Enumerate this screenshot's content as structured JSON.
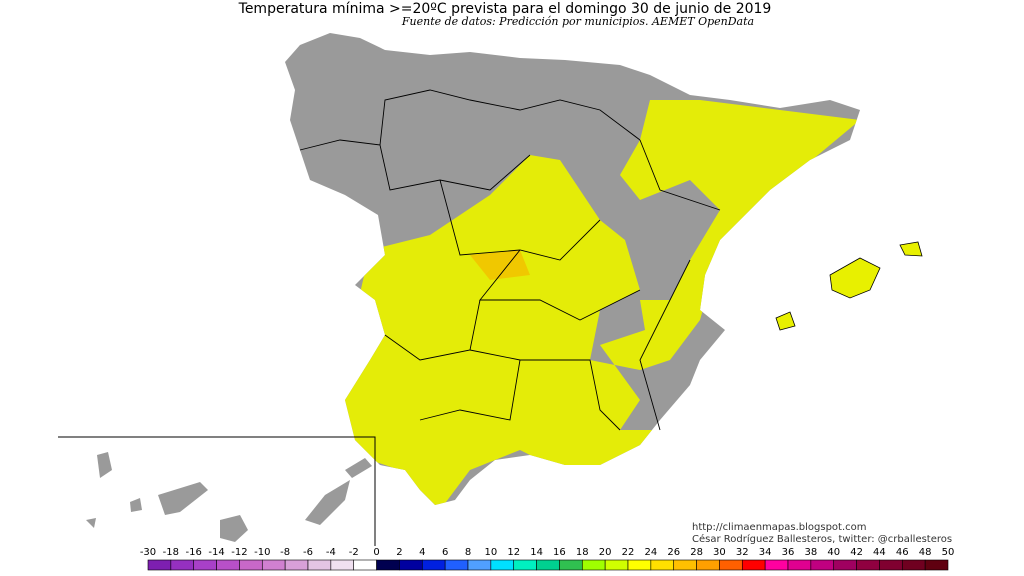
{
  "header": {
    "title": "Temperatura mínima >=20ºC prevista para el domingo 30 de junio de 2019",
    "subtitle": "Fuente de datos: Predicción por municipios. AEMET OpenData"
  },
  "credits": [
    "http://climaenmapas.blogspot.com",
    "César Rodríguez Ballesteros, twitter: @crballesteros"
  ],
  "legend": {
    "ticks": [
      -30,
      -18,
      -16,
      -14,
      -12,
      -10,
      -8,
      -6,
      -4,
      -2,
      0,
      2,
      4,
      6,
      8,
      10,
      12,
      14,
      16,
      18,
      20,
      22,
      24,
      26,
      28,
      30,
      32,
      34,
      36,
      38,
      40,
      42,
      44,
      46,
      48,
      50
    ],
    "colors": [
      "#7d1fb0",
      "#9530c0",
      "#a840c8",
      "#b850c8",
      "#c868c8",
      "#d080d0",
      "#d8a0d8",
      "#e4c4e4",
      "#f0e0f0",
      "#ffffff",
      "#000050",
      "#0000a0",
      "#0020e0",
      "#2060ff",
      "#50a0ff",
      "#00e0ff",
      "#00f0c0",
      "#00d090",
      "#30c050",
      "#a0ff00",
      "#d0ff00",
      "#ffff00",
      "#ffe000",
      "#ffc000",
      "#ffa000",
      "#ff6000",
      "#ff0000",
      "#ff00a0",
      "#e00090",
      "#c00080",
      "#a00060",
      "#900040",
      "#800030",
      "#700020",
      "#600010"
    ]
  }
}
